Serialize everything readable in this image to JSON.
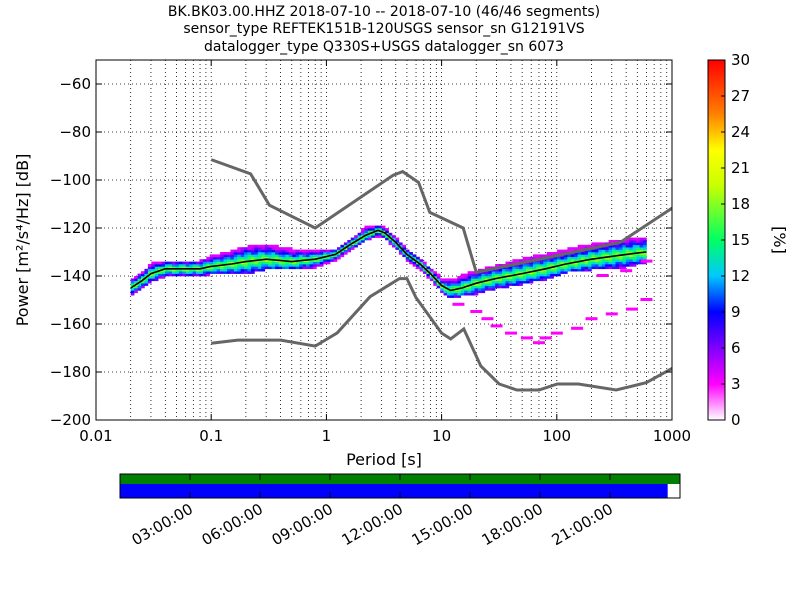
{
  "chart_data": {
    "type": "heatmap",
    "title": {
      "line1": "BK.BK03.00.HHZ   2018-07-10 -- 2018-07-10  (46/46 segments)",
      "line2": "sensor_type REFTEK151B-120USGS sensor_sn G12191VS",
      "line3": "datalogger_type Q330S+USGS datalogger_sn 6073"
    },
    "xlabel": "Period [s]",
    "ylabel": "Power [m²/s⁴/Hz] [dB]",
    "xscale": "log",
    "xlim": [
      0.01,
      1000
    ],
    "ylim": [
      -200,
      -50
    ],
    "xticks": [
      "0.01",
      "0.1",
      "1",
      "10",
      "100",
      "1000"
    ],
    "yticks": [
      "−60",
      "−80",
      "−100",
      "−120",
      "−140",
      "−160",
      "−180",
      "−200"
    ],
    "grid": true,
    "colorbar": {
      "label": "[%]",
      "range": [
        0,
        30
      ],
      "ticks": [
        "0",
        "3",
        "6",
        "9",
        "12",
        "15",
        "18",
        "21",
        "24",
        "27",
        "30"
      ],
      "colors": [
        "#ffffff",
        "#ff00ff",
        "#8000ff",
        "#0000ff",
        "#00c8ff",
        "#00ff64",
        "#c8ff00",
        "#ffff00",
        "#ff8000",
        "#ff0000"
      ]
    },
    "noise_models": {
      "high": {
        "x": [
          0.1,
          0.22,
          0.32,
          0.8,
          3.8,
          4.6,
          6.3,
          7.9,
          15.4,
          20,
          354.8,
          10000
        ],
        "y": [
          -91.5,
          -97.4,
          -110.5,
          -120,
          -98,
          -96.5,
          -101,
          -113.5,
          -120,
          -138.5,
          -126,
          -80.1
        ]
      },
      "low": {
        "x": [
          0.1,
          0.17,
          0.4,
          0.8,
          1.24,
          2.4,
          4.3,
          5,
          6,
          10,
          12,
          15.6,
          21.9,
          31.6,
          45,
          70,
          101,
          154,
          328,
          600,
          10000
        ],
        "y": [
          -168,
          -166.7,
          -166.7,
          -169.2,
          -163.7,
          -148.6,
          -141.1,
          -141.1,
          -149,
          -163.8,
          -166.2,
          -162.1,
          -177.5,
          -185,
          -187.5,
          -187.5,
          -185,
          -185,
          -187.5,
          -184.4,
          -151.9
        ]
      }
    },
    "median": {
      "x": [
        0.02,
        0.025,
        0.03,
        0.04,
        0.06,
        0.08,
        0.1,
        0.15,
        0.2,
        0.3,
        0.5,
        0.8,
        1.2,
        1.6,
        2.2,
        2.8,
        3.2,
        4,
        5,
        6.5,
        8,
        10,
        12,
        15,
        20,
        30,
        50,
        80,
        120,
        200,
        400,
        600
      ],
      "y": [
        -145,
        -142,
        -139,
        -137,
        -137,
        -137,
        -136,
        -135,
        -134,
        -133,
        -134,
        -133,
        -131,
        -127,
        -123,
        -121,
        -122,
        -126,
        -131,
        -135,
        -139,
        -144,
        -146,
        -145,
        -143,
        -141,
        -139,
        -137,
        -135,
        -133,
        -131,
        -130
      ]
    },
    "psd_band": {
      "x": [
        0.02,
        0.025,
        0.03,
        0.04,
        0.06,
        0.08,
        0.1,
        0.15,
        0.2,
        0.3,
        0.5,
        0.8,
        1.2,
        1.6,
        2.2,
        2.8,
        3.2,
        4,
        5,
        6.5,
        8,
        10,
        12,
        15,
        20,
        30,
        50,
        80,
        120,
        200,
        400,
        600
      ],
      "upper": [
        -142,
        -139,
        -135,
        -134,
        -134,
        -134,
        -132,
        -130,
        -128,
        -127,
        -129,
        -130,
        -129,
        -125,
        -120,
        -119,
        -120,
        -124,
        -129,
        -133,
        -137,
        -141,
        -142,
        -140,
        -138,
        -136,
        -133,
        -131,
        -129,
        -127,
        -125,
        -124
      ],
      "lower": [
        -148,
        -145,
        -142,
        -140,
        -140,
        -140,
        -139,
        -139,
        -139,
        -137,
        -137,
        -136,
        -133,
        -129,
        -125,
        -123,
        -124,
        -128,
        -133,
        -137,
        -141,
        -146,
        -149,
        -148,
        -147,
        -145,
        -143,
        -141,
        -138,
        -137,
        -136,
        -134
      ]
    },
    "outliers": {
      "x": [
        14,
        20,
        25,
        30,
        40,
        55,
        70,
        80,
        100,
        150,
        200,
        300,
        450,
        600,
        250,
        400,
        600
      ],
      "y": [
        -152,
        -155,
        -158,
        -161,
        -164,
        -166,
        -168,
        -166,
        -164,
        -162,
        -158,
        -156,
        -154,
        -150,
        -140,
        -138,
        -134
      ]
    },
    "timeline": {
      "ticks": [
        "03:00:00",
        "06:00:00",
        "09:00:00",
        "12:00:00",
        "15:00:00",
        "18:00:00",
        "21:00:00"
      ],
      "data_fraction": 1.0,
      "used_fraction": 0.978,
      "data_color": "#008000",
      "used_color": "#0000ff"
    }
  }
}
